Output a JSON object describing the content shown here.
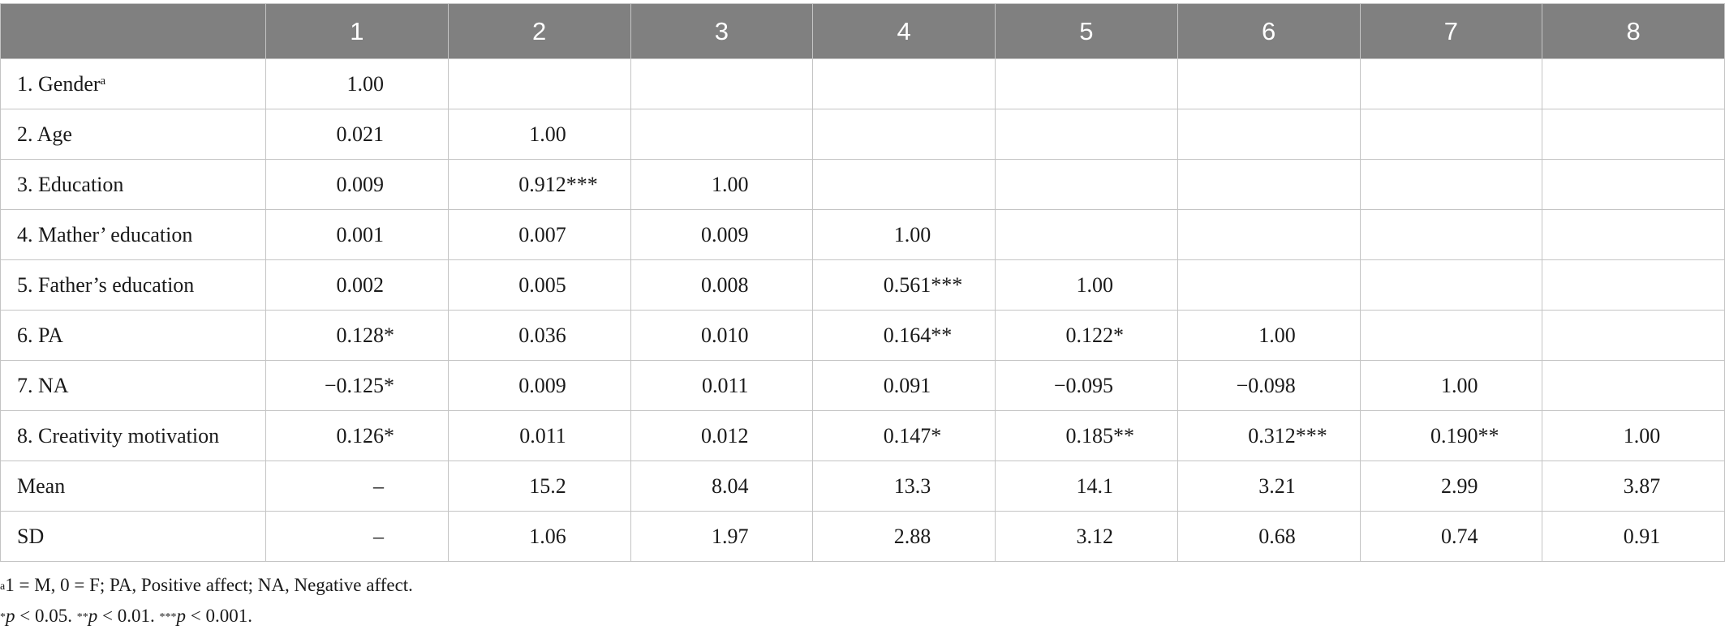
{
  "table": {
    "corner_header": "",
    "column_headers": [
      "1",
      "2",
      "3",
      "4",
      "5",
      "6",
      "7",
      "8"
    ],
    "rows": [
      {
        "label": "1. Gender",
        "label_sup": "a",
        "cells": [
          {
            "num": "1.00",
            "stars": ""
          },
          {
            "num": "",
            "stars": ""
          },
          {
            "num": "",
            "stars": ""
          },
          {
            "num": "",
            "stars": ""
          },
          {
            "num": "",
            "stars": ""
          },
          {
            "num": "",
            "stars": ""
          },
          {
            "num": "",
            "stars": ""
          },
          {
            "num": "",
            "stars": ""
          }
        ]
      },
      {
        "label": "2. Age",
        "label_sup": "",
        "cells": [
          {
            "num": "0.021",
            "stars": ""
          },
          {
            "num": "1.00",
            "stars": ""
          },
          {
            "num": "",
            "stars": ""
          },
          {
            "num": "",
            "stars": ""
          },
          {
            "num": "",
            "stars": ""
          },
          {
            "num": "",
            "stars": ""
          },
          {
            "num": "",
            "stars": ""
          },
          {
            "num": "",
            "stars": ""
          }
        ]
      },
      {
        "label": "3. Education",
        "label_sup": "",
        "cells": [
          {
            "num": "0.009",
            "stars": ""
          },
          {
            "num": "0.912",
            "stars": "***"
          },
          {
            "num": "1.00",
            "stars": ""
          },
          {
            "num": "",
            "stars": ""
          },
          {
            "num": "",
            "stars": ""
          },
          {
            "num": "",
            "stars": ""
          },
          {
            "num": "",
            "stars": ""
          },
          {
            "num": "",
            "stars": ""
          }
        ]
      },
      {
        "label": "4. Mather’ education",
        "label_sup": "",
        "cells": [
          {
            "num": "0.001",
            "stars": ""
          },
          {
            "num": "0.007",
            "stars": ""
          },
          {
            "num": "0.009",
            "stars": ""
          },
          {
            "num": "1.00",
            "stars": ""
          },
          {
            "num": "",
            "stars": ""
          },
          {
            "num": "",
            "stars": ""
          },
          {
            "num": "",
            "stars": ""
          },
          {
            "num": "",
            "stars": ""
          }
        ]
      },
      {
        "label": "5. Father’s education",
        "label_sup": "",
        "cells": [
          {
            "num": "0.002",
            "stars": ""
          },
          {
            "num": "0.005",
            "stars": ""
          },
          {
            "num": "0.008",
            "stars": ""
          },
          {
            "num": "0.561",
            "stars": "***"
          },
          {
            "num": "1.00",
            "stars": ""
          },
          {
            "num": "",
            "stars": ""
          },
          {
            "num": "",
            "stars": ""
          },
          {
            "num": "",
            "stars": ""
          }
        ]
      },
      {
        "label": "6. PA",
        "label_sup": "",
        "cells": [
          {
            "num": "0.128",
            "stars": "*"
          },
          {
            "num": "0.036",
            "stars": ""
          },
          {
            "num": "0.010",
            "stars": ""
          },
          {
            "num": "0.164",
            "stars": "**"
          },
          {
            "num": "0.122",
            "stars": "*"
          },
          {
            "num": "1.00",
            "stars": ""
          },
          {
            "num": "",
            "stars": ""
          },
          {
            "num": "",
            "stars": ""
          }
        ]
      },
      {
        "label": "7. NA",
        "label_sup": "",
        "cells": [
          {
            "num": "−0.125",
            "stars": "*"
          },
          {
            "num": "0.009",
            "stars": ""
          },
          {
            "num": "0.011",
            "stars": ""
          },
          {
            "num": "0.091",
            "stars": ""
          },
          {
            "num": "−0.095",
            "stars": ""
          },
          {
            "num": "−0.098",
            "stars": ""
          },
          {
            "num": "1.00",
            "stars": ""
          },
          {
            "num": "",
            "stars": ""
          }
        ]
      },
      {
        "label": "8. Creativity motivation",
        "label_sup": "",
        "cells": [
          {
            "num": "0.126",
            "stars": "*"
          },
          {
            "num": "0.011",
            "stars": ""
          },
          {
            "num": "0.012",
            "stars": ""
          },
          {
            "num": "0.147",
            "stars": "*"
          },
          {
            "num": "0.185",
            "stars": "**"
          },
          {
            "num": "0.312",
            "stars": "***"
          },
          {
            "num": "0.190",
            "stars": "**"
          },
          {
            "num": "1.00",
            "stars": ""
          }
        ]
      },
      {
        "label": "Mean",
        "label_sup": "",
        "cells": [
          {
            "num": "–",
            "stars": ""
          },
          {
            "num": "15.2",
            "stars": ""
          },
          {
            "num": "8.04",
            "stars": ""
          },
          {
            "num": "13.3",
            "stars": ""
          },
          {
            "num": "14.1",
            "stars": ""
          },
          {
            "num": "3.21",
            "stars": ""
          },
          {
            "num": "2.99",
            "stars": ""
          },
          {
            "num": "3.87",
            "stars": ""
          }
        ]
      },
      {
        "label": "SD",
        "label_sup": "",
        "cells": [
          {
            "num": "–",
            "stars": ""
          },
          {
            "num": "1.06",
            "stars": ""
          },
          {
            "num": "1.97",
            "stars": ""
          },
          {
            "num": "2.88",
            "stars": ""
          },
          {
            "num": "3.12",
            "stars": ""
          },
          {
            "num": "0.68",
            "stars": ""
          },
          {
            "num": "0.74",
            "stars": ""
          },
          {
            "num": "0.91",
            "stars": ""
          }
        ]
      }
    ]
  },
  "notes": {
    "line1_sup": "a",
    "line1_text": "1 = M, 0 = F; PA, Positive affect; NA, Negative affect.",
    "line2": {
      "s1_stars": "*",
      "s1_p": "p",
      "s1_rest": " < 0.05. ",
      "s2_stars": "**",
      "s2_p": "p",
      "s2_rest": " < 0.01. ",
      "s3_stars": "***",
      "s3_p": "p",
      "s3_rest": " < 0.001."
    }
  }
}
